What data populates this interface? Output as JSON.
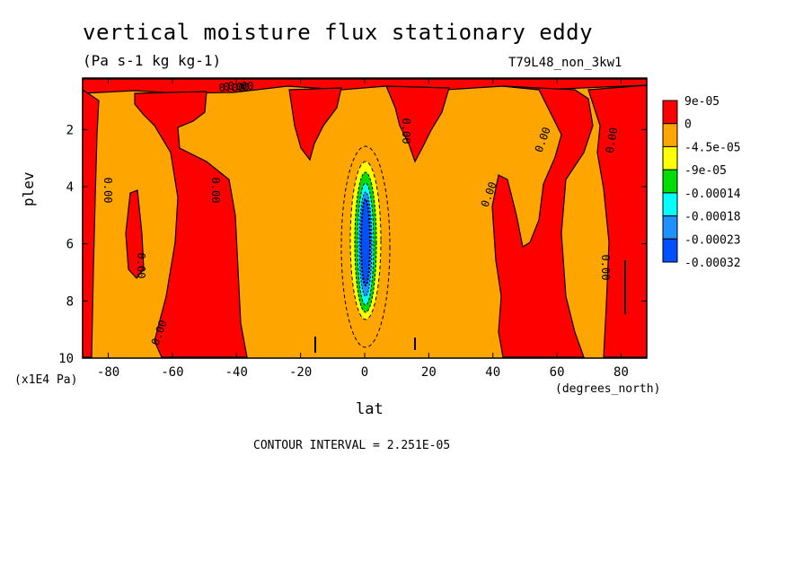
{
  "title": "vertical moisture flux stationary eddy",
  "units": "(Pa s-1 kg kg-1)",
  "run_id": "T79L48_non_3kw1",
  "contour_interval": "CONTOUR INTERVAL = 2.251E-05",
  "chart_data": {
    "type": "heatmap",
    "xlabel": "lat",
    "x_unit": "(degrees_north)",
    "ylabel": "plev",
    "y_unit": "(x1E4 Pa)",
    "xlim": [
      -88,
      88
    ],
    "ylim": [
      10,
      0.2
    ],
    "x_ticks": [
      "-80",
      "-60",
      "-40",
      "-20",
      "0",
      "20",
      "40",
      "60",
      "80"
    ],
    "y_ticks": [
      "2",
      "4",
      "6",
      "8",
      "10"
    ],
    "contour_labels": [
      "0.00",
      "0.00",
      "0.00",
      "0.00",
      "0.00",
      "0.00",
      "0.00",
      "0.00",
      "0.00",
      "0.00",
      "0.00",
      "0.00"
    ],
    "colorbar": {
      "levels": [
        "9e-05",
        "0",
        "-4.5e-05",
        "-9e-05",
        "-0.00014",
        "-0.00018",
        "-0.00023",
        "-0.00032"
      ],
      "colors": [
        "#ff0000",
        "#ffa500",
        "#ffff00",
        "#00dd00",
        "#00ffff",
        "#1e90ff",
        "#0050ff"
      ]
    },
    "regions": [
      {
        "name": "positive",
        "color": "#ff0000",
        "lat": [
          -88,
          -80
        ],
        "plev": [
          0.3,
          10
        ]
      },
      {
        "name": "positive",
        "color": "#ff0000",
        "lat": [
          -68,
          -38
        ],
        "plev": [
          0.5,
          10
        ]
      },
      {
        "name": "positive",
        "color": "#ff0000",
        "lat": [
          -76,
          -71
        ],
        "plev": [
          4,
          7
        ]
      },
      {
        "name": "positive",
        "color": "#ff0000",
        "lat": [
          38,
          62
        ],
        "plev": [
          1.5,
          10
        ]
      },
      {
        "name": "positive",
        "color": "#ff0000",
        "lat": [
          68,
          88
        ],
        "plev": [
          0.3,
          10
        ]
      },
      {
        "name": "negative-core",
        "color": "#0050ff",
        "lat": [
          -3,
          3
        ],
        "plev": [
          3,
          9
        ]
      }
    ]
  }
}
